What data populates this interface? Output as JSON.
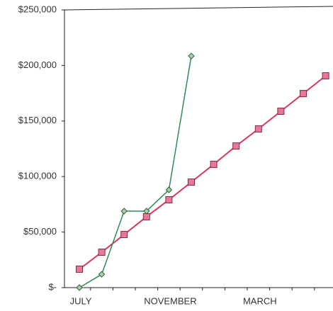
{
  "chart_data": {
    "type": "line",
    "categories": [
      "JULY",
      null,
      null,
      null,
      "NOVEMBER",
      null,
      null,
      null,
      "MARCH",
      null,
      null,
      null
    ],
    "series": [
      {
        "color": "#d63a5e",
        "marker_color": "#e8789a",
        "marker": "square",
        "values": [
          16600,
          31900,
          47800,
          63800,
          79100,
          95000,
          111000,
          127500,
          142900,
          158800,
          174700,
          190700
        ]
      },
      {
        "color": "#2e8b57",
        "marker_color": "#a9d2a4",
        "marker": "diamond",
        "values": [
          0,
          12000,
          68900,
          68900,
          88000,
          208500,
          null,
          null,
          null,
          null,
          null,
          null
        ]
      }
    ],
    "ylim": [
      0,
      250000
    ],
    "yticks": [
      {
        "value": 0,
        "label": "$-"
      },
      {
        "value": 50000,
        "label": "$50,000"
      },
      {
        "value": 100000,
        "label": "$100,000"
      },
      {
        "value": 150000,
        "label": "$150,000"
      },
      {
        "value": 200000,
        "label": "$200,000"
      },
      {
        "value": 250000,
        "label": "$250,000"
      }
    ],
    "grid": false
  }
}
